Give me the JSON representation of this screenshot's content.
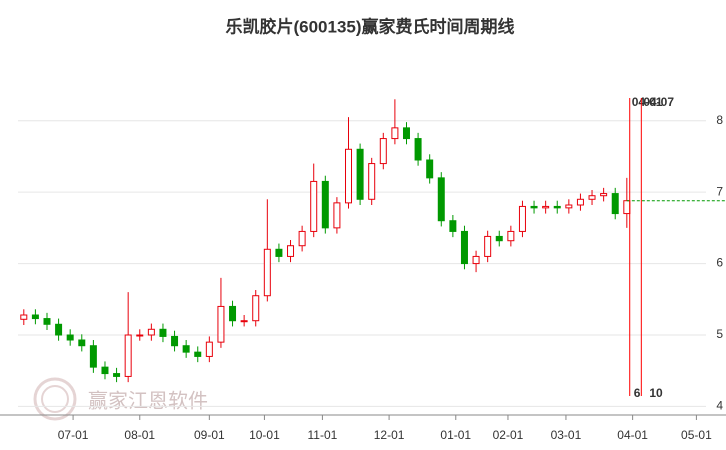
{
  "chart_data": {
    "type": "candlestick",
    "title": "乐凯胶片(600135)赢家费氏时间周期线",
    "watermark": "赢家江恩软件",
    "x": [
      2,
      6,
      10,
      14,
      18,
      22,
      26,
      30,
      34,
      38,
      42,
      46,
      50,
      54,
      58,
      62,
      66,
      70,
      74,
      78,
      82,
      86,
      90,
      94,
      98,
      102,
      106,
      110,
      114,
      118,
      122,
      126,
      130,
      134,
      138,
      142,
      146,
      150,
      154,
      158,
      162,
      166,
      170,
      174,
      178,
      182,
      186,
      190,
      194,
      198,
      202,
      206,
      210
    ],
    "open": [
      5.22,
      5.28,
      5.23,
      5.15,
      5.0,
      4.93,
      4.85,
      4.55,
      4.46,
      4.42,
      5.0,
      5.0,
      5.08,
      4.98,
      4.85,
      4.76,
      4.7,
      4.9,
      5.4,
      5.2,
      5.2,
      5.55,
      6.2,
      6.1,
      6.25,
      6.45,
      7.15,
      6.5,
      6.85,
      7.6,
      6.9,
      7.4,
      7.75,
      7.9,
      7.75,
      7.45,
      7.2,
      6.6,
      6.45,
      6.0,
      6.1,
      6.38,
      6.32,
      6.45,
      6.8,
      6.78,
      6.8,
      6.78,
      6.82,
      6.9,
      6.95,
      6.98,
      6.7
    ],
    "high": [
      5.36,
      5.36,
      5.31,
      5.23,
      5.08,
      5.01,
      4.93,
      4.63,
      4.54,
      5.6,
      5.08,
      5.16,
      5.16,
      5.06,
      4.93,
      4.84,
      4.98,
      5.8,
      5.48,
      5.28,
      5.63,
      6.9,
      6.28,
      6.33,
      6.53,
      7.4,
      7.23,
      6.93,
      8.05,
      7.68,
      7.48,
      7.83,
      8.3,
      7.98,
      7.83,
      7.53,
      7.28,
      6.68,
      6.53,
      6.18,
      6.46,
      6.46,
      6.53,
      6.88,
      6.88,
      6.88,
      6.88,
      6.9,
      6.98,
      7.03,
      7.06,
      7.06,
      7.2
    ],
    "low": [
      5.14,
      5.15,
      5.07,
      4.92,
      4.85,
      4.77,
      4.47,
      4.38,
      4.34,
      4.34,
      4.92,
      4.92,
      4.9,
      4.77,
      4.68,
      4.62,
      4.62,
      4.82,
      5.12,
      5.12,
      5.12,
      5.47,
      6.02,
      6.02,
      6.17,
      6.37,
      6.42,
      6.42,
      6.77,
      6.82,
      6.82,
      7.32,
      7.67,
      7.67,
      7.37,
      7.12,
      6.52,
      6.37,
      5.92,
      5.88,
      6.02,
      6.24,
      6.24,
      6.37,
      6.7,
      6.7,
      6.7,
      6.7,
      6.74,
      6.82,
      6.87,
      6.62,
      6.5
    ],
    "close": [
      5.28,
      5.23,
      5.15,
      5.0,
      4.93,
      4.85,
      4.55,
      4.46,
      4.42,
      5.0,
      5.0,
      5.08,
      4.98,
      4.85,
      4.76,
      4.7,
      4.9,
      5.4,
      5.2,
      5.2,
      5.55,
      6.2,
      6.1,
      6.25,
      6.45,
      7.15,
      6.5,
      6.85,
      7.6,
      6.9,
      7.4,
      7.75,
      7.9,
      7.75,
      7.45,
      7.2,
      6.6,
      6.45,
      6.0,
      6.1,
      6.38,
      6.32,
      6.45,
      6.8,
      6.78,
      6.8,
      6.78,
      6.82,
      6.9,
      6.95,
      6.98,
      6.7,
      6.88
    ],
    "up_color": "#e8000b",
    "down_color": "#009900",
    "last_price": 6.88,
    "cycle_lines": [
      {
        "x": 211,
        "label": "04-01",
        "count": 6
      },
      {
        "x": 215,
        "label": "04-07",
        "count": 10
      }
    ],
    "cycle_color": "#ff0000",
    "xlim": [
      0,
      238
    ],
    "xticks": [
      {
        "value": 19,
        "label": "07-01"
      },
      {
        "value": 42,
        "label": "08-01"
      },
      {
        "value": 66,
        "label": "09-01"
      },
      {
        "value": 85,
        "label": "10-01"
      },
      {
        "value": 105,
        "label": "11-01"
      },
      {
        "value": 128,
        "label": "12-01"
      },
      {
        "value": 151,
        "label": "01-01"
      },
      {
        "value": 169,
        "label": "02-01"
      },
      {
        "value": 189,
        "label": "03-01"
      },
      {
        "value": 212,
        "label": "04-01"
      },
      {
        "value": 234,
        "label": "05-01"
      }
    ],
    "ylim": [
      3.88,
      8.36
    ],
    "yticks": [
      4,
      5,
      6,
      7,
      8
    ],
    "grid": true
  }
}
